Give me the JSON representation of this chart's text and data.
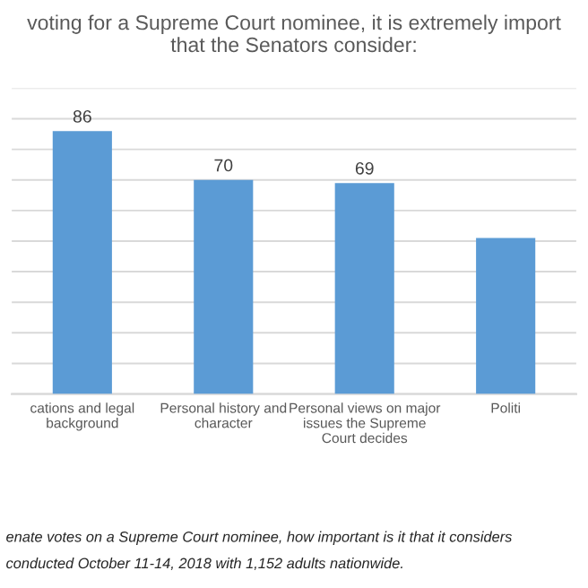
{
  "chart_data": {
    "type": "bar",
    "title": "voting for a Supreme Court nominee, it is extremely import\nthat the Senators consider:",
    "categories": [
      "cations and legal\nbackground",
      "Personal history and\ncharacter",
      "Personal views on major\nissues the Supreme\nCourt decides",
      "Politi"
    ],
    "values": [
      86,
      70,
      69,
      51
    ],
    "value_labels": [
      "86",
      "70",
      "69",
      null
    ],
    "color": "#5b9bd5",
    "ylim": [
      0,
      100
    ],
    "yticks": [
      {
        "value": 0,
        "label": null
      },
      {
        "value": 10,
        "label": null
      },
      {
        "value": 20,
        "label": null
      },
      {
        "value": 30,
        "label": null
      },
      {
        "value": 40,
        "label": null
      },
      {
        "value": 50,
        "label": null
      },
      {
        "value": 60,
        "label": null
      },
      {
        "value": 70,
        "label": null
      },
      {
        "value": 80,
        "label": null
      },
      {
        "value": 90,
        "label": null
      },
      {
        "value": 100,
        "label": null
      }
    ],
    "grid": "y",
    "tick_labels": "x",
    "annotations": [
      "enate votes on a Supreme Court nominee, how important is it that it considers",
      "conducted October 11-14, 2018 with 1,152 adults nationwide."
    ]
  }
}
